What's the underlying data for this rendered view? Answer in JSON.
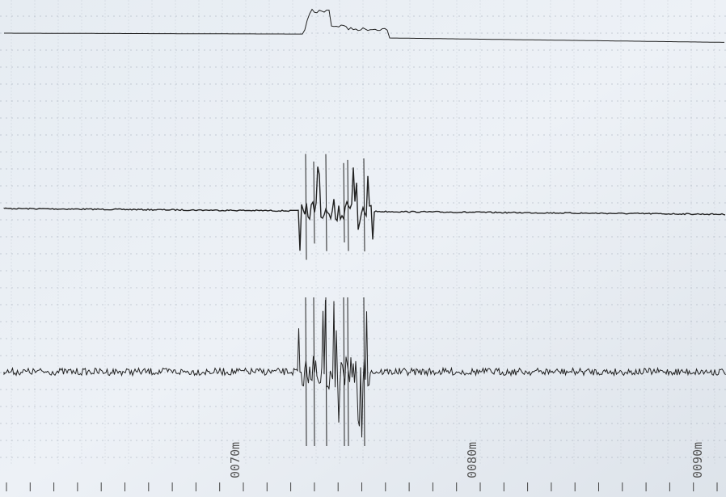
{
  "scale_labels": [
    "0070m",
    "0080m",
    "0090m"
  ]
}
